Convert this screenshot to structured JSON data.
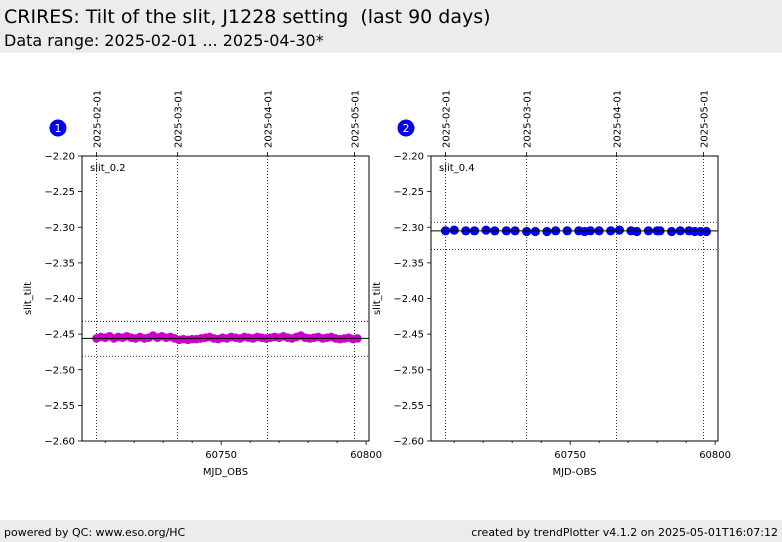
{
  "header": {
    "title": "CRIRES: Tilt of the slit, J1228 setting  (last 90 days)",
    "subtitle": "Data range: 2025-02-01 ... 2025-04-30*"
  },
  "footer": {
    "left": "powered by QC: www.eso.org/HC",
    "right": "created by trendPlotter v4.1.2 on 2025-05-01T16:07:12"
  },
  "chart_data": [
    {
      "type": "scatter",
      "panel_number": "1",
      "label": "slit_0.2",
      "xlabel": "MJD_OBS",
      "ylabel": "slit_tilt",
      "xlim": [
        60702,
        60801
      ],
      "ylim": [
        -2.6,
        -2.2
      ],
      "x_ticks": [
        60750,
        60800
      ],
      "y_ticks": [
        -2.2,
        -2.25,
        -2.3,
        -2.35,
        -2.4,
        -2.45,
        -2.5,
        -2.55,
        -2.6
      ],
      "top_ticks": [
        {
          "label": "2025-02-01",
          "x": 60707
        },
        {
          "label": "2025-03-01",
          "x": 60735
        },
        {
          "label": "2025-04-01",
          "x": 60766
        },
        {
          "label": "2025-05-01",
          "x": 60796
        }
      ],
      "mean": -2.456,
      "band": [
        -2.432,
        -2.481
      ],
      "marker_color": "#cc00cc",
      "line_color": "#000000",
      "series": [
        {
          "x": [
            60707.0,
            60708.5,
            60710.0,
            60711.5,
            60713.0,
            60714.5,
            60716.0,
            60717.5,
            60719.0,
            60720.5,
            60722.0,
            60723.5,
            60725.0,
            60726.5,
            60728.0,
            60729.5,
            60731.0,
            60732.5,
            60734.0,
            60735.5,
            60737.0,
            60738.5,
            60740.0,
            60741.5,
            60743.0,
            60744.5,
            60746.0,
            60747.5,
            60749.0,
            60750.5,
            60752.0,
            60753.5,
            60755.0,
            60756.5,
            60758.0,
            60759.5,
            60761.0,
            60762.5,
            60764.0,
            60765.5,
            60767.0,
            60768.5,
            60770.0,
            60771.5,
            60773.0,
            60774.5,
            60776.0,
            60777.5,
            60779.0,
            60780.5,
            60782.0,
            60783.5,
            60785.0,
            60786.5,
            60788.0,
            60789.5,
            60791.0,
            60792.5,
            60794.0,
            60795.5,
            60797.0
          ],
          "y": [
            -2.456,
            -2.454,
            -2.455,
            -2.453,
            -2.456,
            -2.454,
            -2.455,
            -2.453,
            -2.455,
            -2.456,
            -2.454,
            -2.456,
            -2.455,
            -2.452,
            -2.455,
            -2.453,
            -2.455,
            -2.454,
            -2.456,
            -2.458,
            -2.457,
            -2.458,
            -2.457,
            -2.457,
            -2.456,
            -2.455,
            -2.454,
            -2.456,
            -2.457,
            -2.455,
            -2.456,
            -2.454,
            -2.455,
            -2.456,
            -2.454,
            -2.455,
            -2.456,
            -2.454,
            -2.455,
            -2.456,
            -2.455,
            -2.454,
            -2.455,
            -2.453,
            -2.455,
            -2.456,
            -2.454,
            -2.452,
            -2.455,
            -2.456,
            -2.455,
            -2.454,
            -2.456,
            -2.455,
            -2.454,
            -2.456,
            -2.457,
            -2.456,
            -2.455,
            -2.457,
            -2.456
          ]
        }
      ]
    },
    {
      "type": "scatter",
      "panel_number": "2",
      "label": "slit_0.4",
      "xlabel": "MJD-OBS",
      "ylabel": "slit_tilt",
      "xlim": [
        60702,
        60801
      ],
      "ylim": [
        -2.6,
        -2.2
      ],
      "x_ticks": [
        60750,
        60800
      ],
      "y_ticks": [
        -2.2,
        -2.25,
        -2.3,
        -2.35,
        -2.4,
        -2.45,
        -2.5,
        -2.55,
        -2.6
      ],
      "top_ticks": [
        {
          "label": "2025-02-01",
          "x": 60707
        },
        {
          "label": "2025-03-01",
          "x": 60735
        },
        {
          "label": "2025-04-01",
          "x": 60766
        },
        {
          "label": "2025-05-01",
          "x": 60796
        }
      ],
      "mean": -2.305,
      "band": [
        -2.293,
        -2.331
      ],
      "marker_color": "#0000ee",
      "line_color": "#000000",
      "series": [
        {
          "x": [
            60707.0,
            60710.0,
            60714.0,
            60717.0,
            60721.0,
            60724.0,
            60728.0,
            60731.0,
            60735.0,
            60738.0,
            60742.0,
            60745.0,
            60749.0,
            60753.0,
            60755.0,
            60757.0,
            60760.0,
            60764.0,
            60767.0,
            60771.0,
            60773.0,
            60777.0,
            60780.0,
            60781.0,
            60785.0,
            60788.0,
            60791.0,
            60793.0,
            60795.0,
            60797.0
          ],
          "y": [
            -2.305,
            -2.304,
            -2.305,
            -2.305,
            -2.304,
            -2.305,
            -2.305,
            -2.305,
            -2.306,
            -2.306,
            -2.306,
            -2.305,
            -2.305,
            -2.305,
            -2.306,
            -2.305,
            -2.305,
            -2.305,
            -2.304,
            -2.305,
            -2.306,
            -2.305,
            -2.305,
            -2.305,
            -2.306,
            -2.305,
            -2.305,
            -2.306,
            -2.306,
            -2.306
          ]
        }
      ]
    }
  ]
}
